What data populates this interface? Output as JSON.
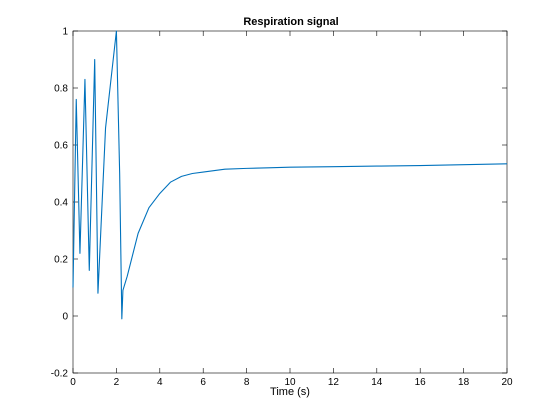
{
  "chart_data": {
    "type": "line",
    "title": "Respiration signal",
    "xlabel": "Time (s)",
    "ylabel": "",
    "xlim": [
      0,
      20
    ],
    "ylim": [
      -0.2,
      1
    ],
    "xticks": [
      0,
      2,
      4,
      6,
      8,
      10,
      12,
      14,
      16,
      18,
      20
    ],
    "yticks": [
      -0.2,
      0,
      0.2,
      0.4,
      0.6,
      0.8,
      1
    ],
    "xtick_labels": [
      "0",
      "2",
      "4",
      "6",
      "8",
      "10",
      "12",
      "14",
      "16",
      "18",
      "20"
    ],
    "ytick_labels": [
      "-0.2",
      "0",
      "0.2",
      "0.4",
      "0.6",
      "0.8",
      "1"
    ],
    "grid": false,
    "line_color": "#0072BD",
    "series": [
      {
        "x": [
          0,
          0.15,
          0.32,
          0.55,
          0.75,
          1.0,
          1.15,
          1.5,
          2.0,
          2.15,
          2.25,
          2.3,
          2.5,
          3.0,
          3.5,
          4.0,
          4.5,
          5.0,
          5.5,
          6.0,
          7.0,
          8.0,
          9.0,
          10.0,
          12.0,
          14.0,
          16.0,
          18.0,
          20.0
        ],
        "y": [
          0.1,
          0.76,
          0.22,
          0.83,
          0.16,
          0.9,
          0.08,
          0.66,
          1.0,
          0.5,
          -0.01,
          0.09,
          0.14,
          0.29,
          0.38,
          0.43,
          0.47,
          0.49,
          0.5,
          0.505,
          0.515,
          0.518,
          0.52,
          0.522,
          0.524,
          0.526,
          0.528,
          0.531,
          0.534
        ]
      }
    ]
  }
}
